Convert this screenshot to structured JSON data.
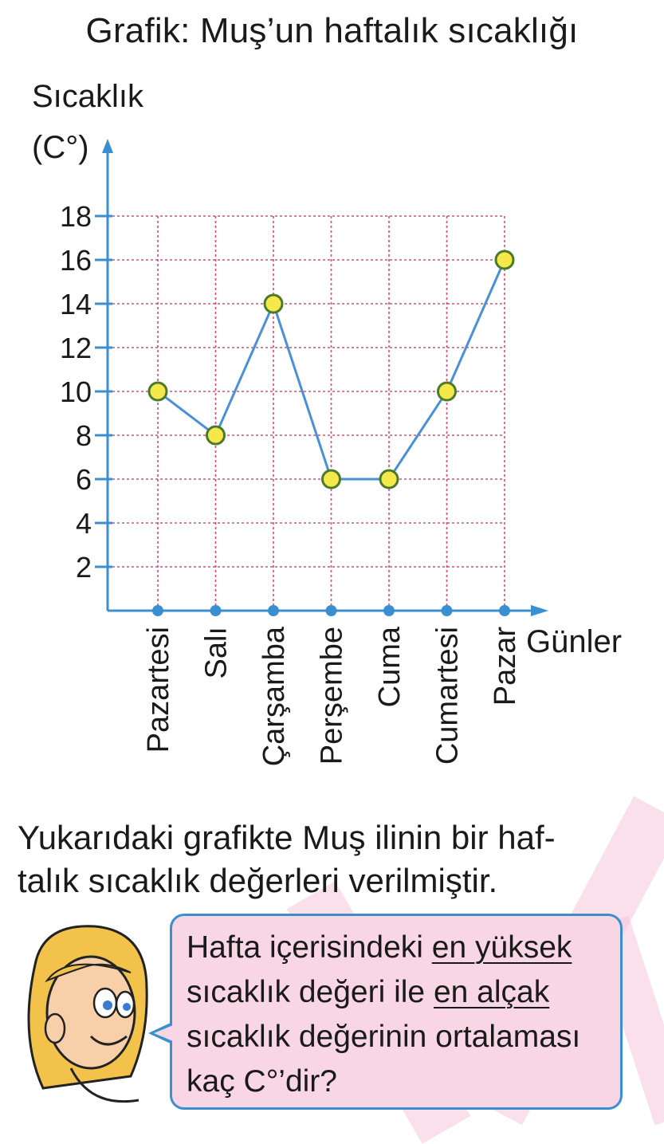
{
  "header": {
    "title": "Grafik: Muş’un haftalık sıcaklığı"
  },
  "chart_data": {
    "type": "line",
    "ylabel_line1": "Sıcaklık",
    "ylabel_line2": "(C°)",
    "xlabel": "Günler",
    "categories": [
      "Pazartesi",
      "Salı",
      "Çarşamba",
      "Perşembe",
      "Cuma",
      "Cumartesi",
      "Pazar"
    ],
    "values": [
      10,
      8,
      14,
      6,
      6,
      10,
      16
    ],
    "yticks": [
      2,
      4,
      6,
      8,
      10,
      12,
      14,
      16,
      18
    ],
    "ylim": [
      0,
      18
    ],
    "grid": true,
    "colors": {
      "line": "#4a90d9",
      "marker_fill": "#f5e84a",
      "marker_stroke": "#4a7a2a",
      "grid": "#e0457a",
      "axis": "#3a8fd0"
    }
  },
  "paragraph": {
    "line1": "Yukarıdaki grafikte Muş ilinin bir haf-",
    "line2": "talık sıcaklık değerleri verilmiştir."
  },
  "bubble": {
    "l1a": "Hafta içerisindeki ",
    "l1b": "en yüksek",
    "l2a": "sıcaklık değeri ile ",
    "l2b": "en alçak",
    "l3": "sıcaklık değerinin ortalaması",
    "l4": "kaç C°’dir?"
  }
}
